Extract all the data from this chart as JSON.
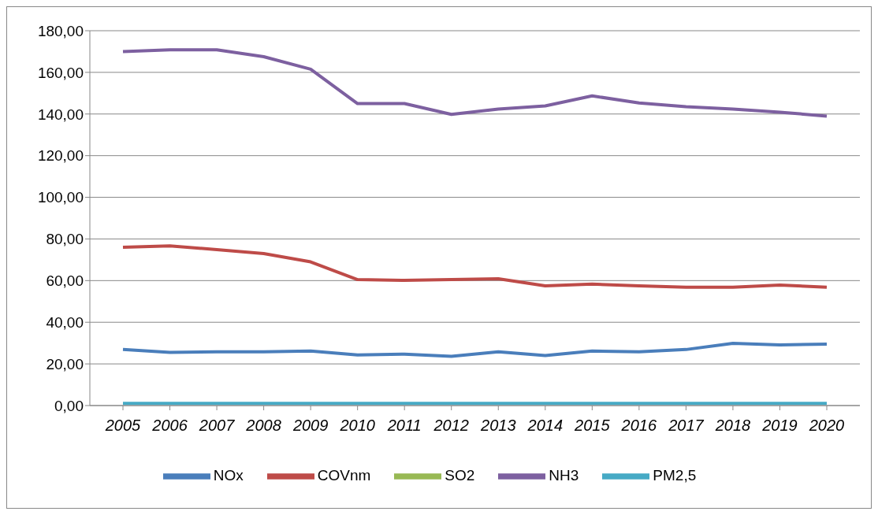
{
  "chart_data": {
    "type": "line",
    "categories": [
      "2005",
      "2006",
      "2007",
      "2008",
      "2009",
      "2010",
      "2011",
      "2012",
      "2013",
      "2014",
      "2015",
      "2016",
      "2017",
      "2018",
      "2019",
      "2020"
    ],
    "series": [
      {
        "name": "NOx",
        "color": "#4a7ebb",
        "values": [
          26.9,
          25.5,
          25.8,
          25.8,
          26.2,
          24.3,
          24.7,
          23.6,
          25.8,
          24.0,
          26.2,
          25.8,
          26.9,
          29.9,
          29.1,
          29.5
        ]
      },
      {
        "name": "COVnm",
        "color": "#be4b48",
        "values": [
          76.0,
          76.7,
          74.9,
          73.0,
          69.0,
          60.5,
          60.1,
          60.5,
          60.9,
          57.5,
          58.3,
          57.5,
          56.8,
          56.8,
          57.9,
          56.8
        ]
      },
      {
        "name": "SO2",
        "color": "#98b954",
        "values": [
          null,
          null,
          null,
          null,
          null,
          null,
          null,
          null,
          null,
          null,
          null,
          null,
          null,
          null,
          null,
          null
        ]
      },
      {
        "name": "NH3",
        "color": "#7d60a0",
        "values": [
          170.0,
          170.8,
          170.8,
          167.5,
          161.5,
          145.0,
          145.0,
          139.8,
          142.4,
          143.9,
          148.7,
          145.3,
          143.5,
          142.4,
          140.9,
          139.0
        ]
      },
      {
        "name": "PM2,5",
        "color": "#46aac5",
        "values": [
          1.0,
          1.0,
          1.0,
          1.0,
          1.0,
          1.0,
          1.0,
          1.0,
          1.0,
          1.0,
          1.0,
          1.0,
          1.0,
          1.0,
          1.0,
          1.0
        ]
      }
    ],
    "ylim": [
      0,
      180
    ],
    "yticks": [
      {
        "value": 0,
        "label": "0,00"
      },
      {
        "value": 20,
        "label": "20,00"
      },
      {
        "value": 40,
        "label": "40,00"
      },
      {
        "value": 60,
        "label": "60,00"
      },
      {
        "value": 80,
        "label": "80,00"
      },
      {
        "value": 100,
        "label": "100,00"
      },
      {
        "value": 120,
        "label": "120,00"
      },
      {
        "value": 140,
        "label": "140,00"
      },
      {
        "value": 160,
        "label": "160,00"
      },
      {
        "value": 180,
        "label": "180,00"
      }
    ],
    "grid": "y",
    "legend": "bottom",
    "marker": "none",
    "line_style": "solid"
  }
}
